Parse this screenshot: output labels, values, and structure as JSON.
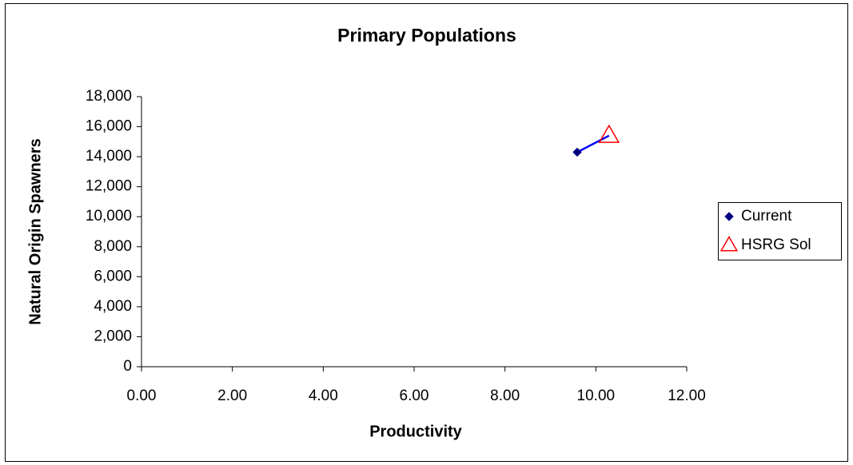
{
  "chart_data": {
    "type": "scatter",
    "title": "Primary Populations",
    "x_label": "Productivity",
    "y_label": "Natural Origin Spawners",
    "xlim": [
      0,
      12
    ],
    "ylim": [
      0,
      18000
    ],
    "xticks": [
      {
        "value": 0,
        "label": "0.00"
      },
      {
        "value": 2,
        "label": "2.00"
      },
      {
        "value": 4,
        "label": "4.00"
      },
      {
        "value": 6,
        "label": "6.00"
      },
      {
        "value": 8,
        "label": "8.00"
      },
      {
        "value": 10,
        "label": "10.00"
      },
      {
        "value": 12,
        "label": "12.00"
      }
    ],
    "yticks": [
      0,
      {
        "value": 2000,
        "label": "2,000"
      },
      {
        "value": 4000,
        "label": "4,000"
      },
      {
        "value": 6000,
        "label": "6,000"
      },
      {
        "value": 8000,
        "label": "8,000"
      },
      {
        "value": 10000,
        "label": "10,000"
      },
      {
        "value": 12000,
        "label": "12,000"
      },
      {
        "value": 14000,
        "label": "14,000"
      },
      {
        "value": 16000,
        "label": "16,000"
      },
      {
        "value": 18000,
        "label": "18,000"
      }
    ],
    "series": [
      {
        "name": "Current",
        "color": "#000080",
        "marker": "diamond",
        "x": [
          9.59
        ],
        "values": [
          14300
        ]
      },
      {
        "name": "HSRG Sol",
        "color": "#ff0000",
        "marker": "triangle",
        "x": [
          10.29
        ],
        "values": [
          15400
        ]
      }
    ],
    "connector_color": "#0000ff",
    "legend": "right"
  }
}
